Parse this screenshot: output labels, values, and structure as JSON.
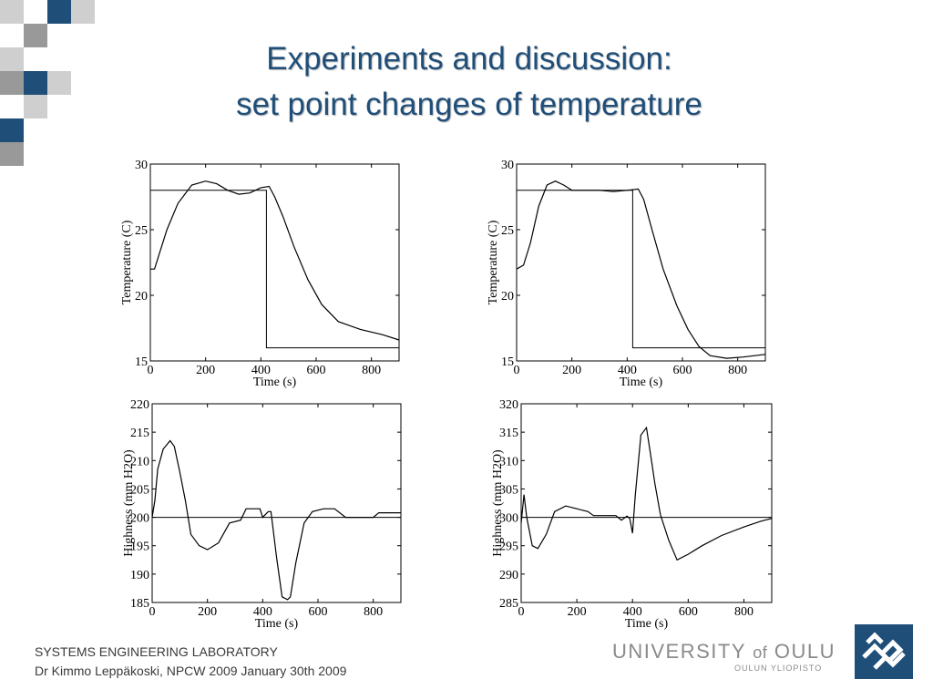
{
  "slide": {
    "title_line1": "Experiments and discussion:",
    "title_line2": "set point changes of temperature",
    "footer_lab": "SYSTEMS ENGINEERING LABORATORY",
    "footer_author": "Dr Kimmo Leppäkoski,  NPCW 2009 January 30th 2009",
    "university": {
      "name_part1": "UNIVERSITY",
      "name_of": "of",
      "name_part2": "OULU",
      "subtitle": "OULUN YLIOPISTO"
    },
    "colors": {
      "title": "#1f4e79",
      "mosaic_blue": "#1f4e79",
      "mosaic_gray": "#999999",
      "mosaic_light": "#cfcfcf",
      "logo_blue": "#1f4e79"
    }
  },
  "chart_data": [
    {
      "type": "line",
      "xlabel": "Time (s)",
      "ylabel": "Temperature (C)",
      "xlim": [
        0,
        900
      ],
      "ylim": [
        15,
        30
      ],
      "xticks": [
        0,
        200,
        400,
        600,
        800
      ],
      "yticks": [
        15,
        20,
        25,
        30
      ],
      "grid": false,
      "series": [
        {
          "points": [
            [
              0,
              22
            ],
            [
              15,
              22
            ],
            [
              30,
              23
            ],
            [
              60,
              25
            ],
            [
              100,
              27
            ],
            [
              150,
              28.4
            ],
            [
              200,
              28.7
            ],
            [
              240,
              28.5
            ],
            [
              280,
              28
            ],
            [
              320,
              27.7
            ],
            [
              360,
              27.8
            ],
            [
              400,
              28.2
            ],
            [
              430,
              28.3
            ],
            [
              450,
              27.5
            ],
            [
              480,
              26
            ],
            [
              520,
              23.7
            ],
            [
              570,
              21.2
            ],
            [
              620,
              19.3
            ],
            [
              680,
              18
            ],
            [
              760,
              17.4
            ],
            [
              840,
              17
            ],
            [
              900,
              16.6
            ]
          ]
        },
        {
          "points": [
            [
              0,
              28
            ],
            [
              420,
              28
            ],
            [
              420,
              16
            ],
            [
              900,
              16
            ]
          ]
        }
      ]
    },
    {
      "type": "line",
      "xlabel": "Time (s)",
      "ylabel": "Temperature (C)",
      "xlim": [
        0,
        900
      ],
      "ylim": [
        15,
        30
      ],
      "xticks": [
        0,
        200,
        400,
        600,
        800
      ],
      "yticks": [
        15,
        20,
        25,
        30
      ],
      "grid": false,
      "series": [
        {
          "points": [
            [
              0,
              22
            ],
            [
              25,
              22.3
            ],
            [
              50,
              24
            ],
            [
              80,
              26.8
            ],
            [
              110,
              28.4
            ],
            [
              140,
              28.7
            ],
            [
              170,
              28.4
            ],
            [
              200,
              28
            ],
            [
              250,
              28
            ],
            [
              300,
              28
            ],
            [
              350,
              27.9
            ],
            [
              400,
              28
            ],
            [
              440,
              28.1
            ],
            [
              460,
              27.3
            ],
            [
              490,
              25
            ],
            [
              530,
              22
            ],
            [
              580,
              19.2
            ],
            [
              620,
              17.4
            ],
            [
              660,
              16.1
            ],
            [
              700,
              15.4
            ],
            [
              760,
              15.2
            ],
            [
              820,
              15.3
            ],
            [
              900,
              15.5
            ]
          ]
        },
        {
          "points": [
            [
              0,
              28
            ],
            [
              420,
              28
            ],
            [
              420,
              16
            ],
            [
              900,
              16
            ]
          ]
        }
      ]
    },
    {
      "type": "line",
      "xlabel": "Time (s)",
      "ylabel": "Highness (mm H2O)",
      "xlim": [
        0,
        900
      ],
      "ylim": [
        185,
        220
      ],
      "xticks": [
        0,
        200,
        400,
        600,
        800
      ],
      "yticks": [
        185,
        190,
        195,
        200,
        205,
        210,
        215,
        220
      ],
      "grid": false,
      "series": [
        {
          "points": [
            [
              0,
              200
            ],
            [
              10,
              203
            ],
            [
              20,
              208.5
            ],
            [
              40,
              212
            ],
            [
              65,
              213.5
            ],
            [
              80,
              212.5
            ],
            [
              100,
              208
            ],
            [
              120,
              203
            ],
            [
              140,
              197
            ],
            [
              170,
              195
            ],
            [
              200,
              194.3
            ],
            [
              240,
              195.5
            ],
            [
              280,
              199
            ],
            [
              320,
              199.5
            ],
            [
              340,
              201.5
            ],
            [
              390,
              201.5
            ],
            [
              400,
              200
            ],
            [
              420,
              201
            ],
            [
              430,
              201
            ],
            [
              450,
              193
            ],
            [
              470,
              186
            ],
            [
              490,
              185.5
            ],
            [
              500,
              186
            ],
            [
              520,
              192
            ],
            [
              550,
              199
            ],
            [
              580,
              201
            ],
            [
              620,
              201.5
            ],
            [
              660,
              201.5
            ],
            [
              700,
              200
            ],
            [
              740,
              200
            ],
            [
              800,
              200
            ],
            [
              820,
              200.8
            ],
            [
              900,
              200.8
            ]
          ]
        },
        {
          "points": [
            [
              0,
              200
            ],
            [
              900,
              200
            ]
          ]
        }
      ]
    },
    {
      "type": "line",
      "xlabel": "Time (s)",
      "ylabel": "Highness (mm H2O)",
      "xlim": [
        0,
        900
      ],
      "ylim": [
        285,
        320
      ],
      "xticks": [
        0,
        200,
        400,
        600,
        800
      ],
      "yticks": [
        285,
        290,
        295,
        300,
        305,
        310,
        315,
        320
      ],
      "grid": false,
      "series": [
        {
          "points": [
            [
              0,
              299
            ],
            [
              10,
              304
            ],
            [
              20,
              300
            ],
            [
              40,
              295
            ],
            [
              60,
              294.5
            ],
            [
              90,
              297
            ],
            [
              120,
              301
            ],
            [
              160,
              302
            ],
            [
              200,
              301.5
            ],
            [
              240,
              301
            ],
            [
              260,
              300.3
            ],
            [
              300,
              300.3
            ],
            [
              340,
              300.3
            ],
            [
              360,
              299.5
            ],
            [
              380,
              300.2
            ],
            [
              390,
              299.8
            ],
            [
              400,
              297.2
            ],
            [
              410,
              304
            ],
            [
              430,
              314.5
            ],
            [
              450,
              315.8
            ],
            [
              465,
              311
            ],
            [
              480,
              306
            ],
            [
              500,
              300.5
            ],
            [
              530,
              296
            ],
            [
              560,
              292.5
            ],
            [
              600,
              293.5
            ],
            [
              650,
              295
            ],
            [
              720,
              296.8
            ],
            [
              800,
              298.3
            ],
            [
              860,
              299.3
            ],
            [
              900,
              299.8
            ]
          ]
        },
        {
          "points": [
            [
              0,
              300
            ],
            [
              900,
              300
            ]
          ]
        }
      ]
    }
  ]
}
